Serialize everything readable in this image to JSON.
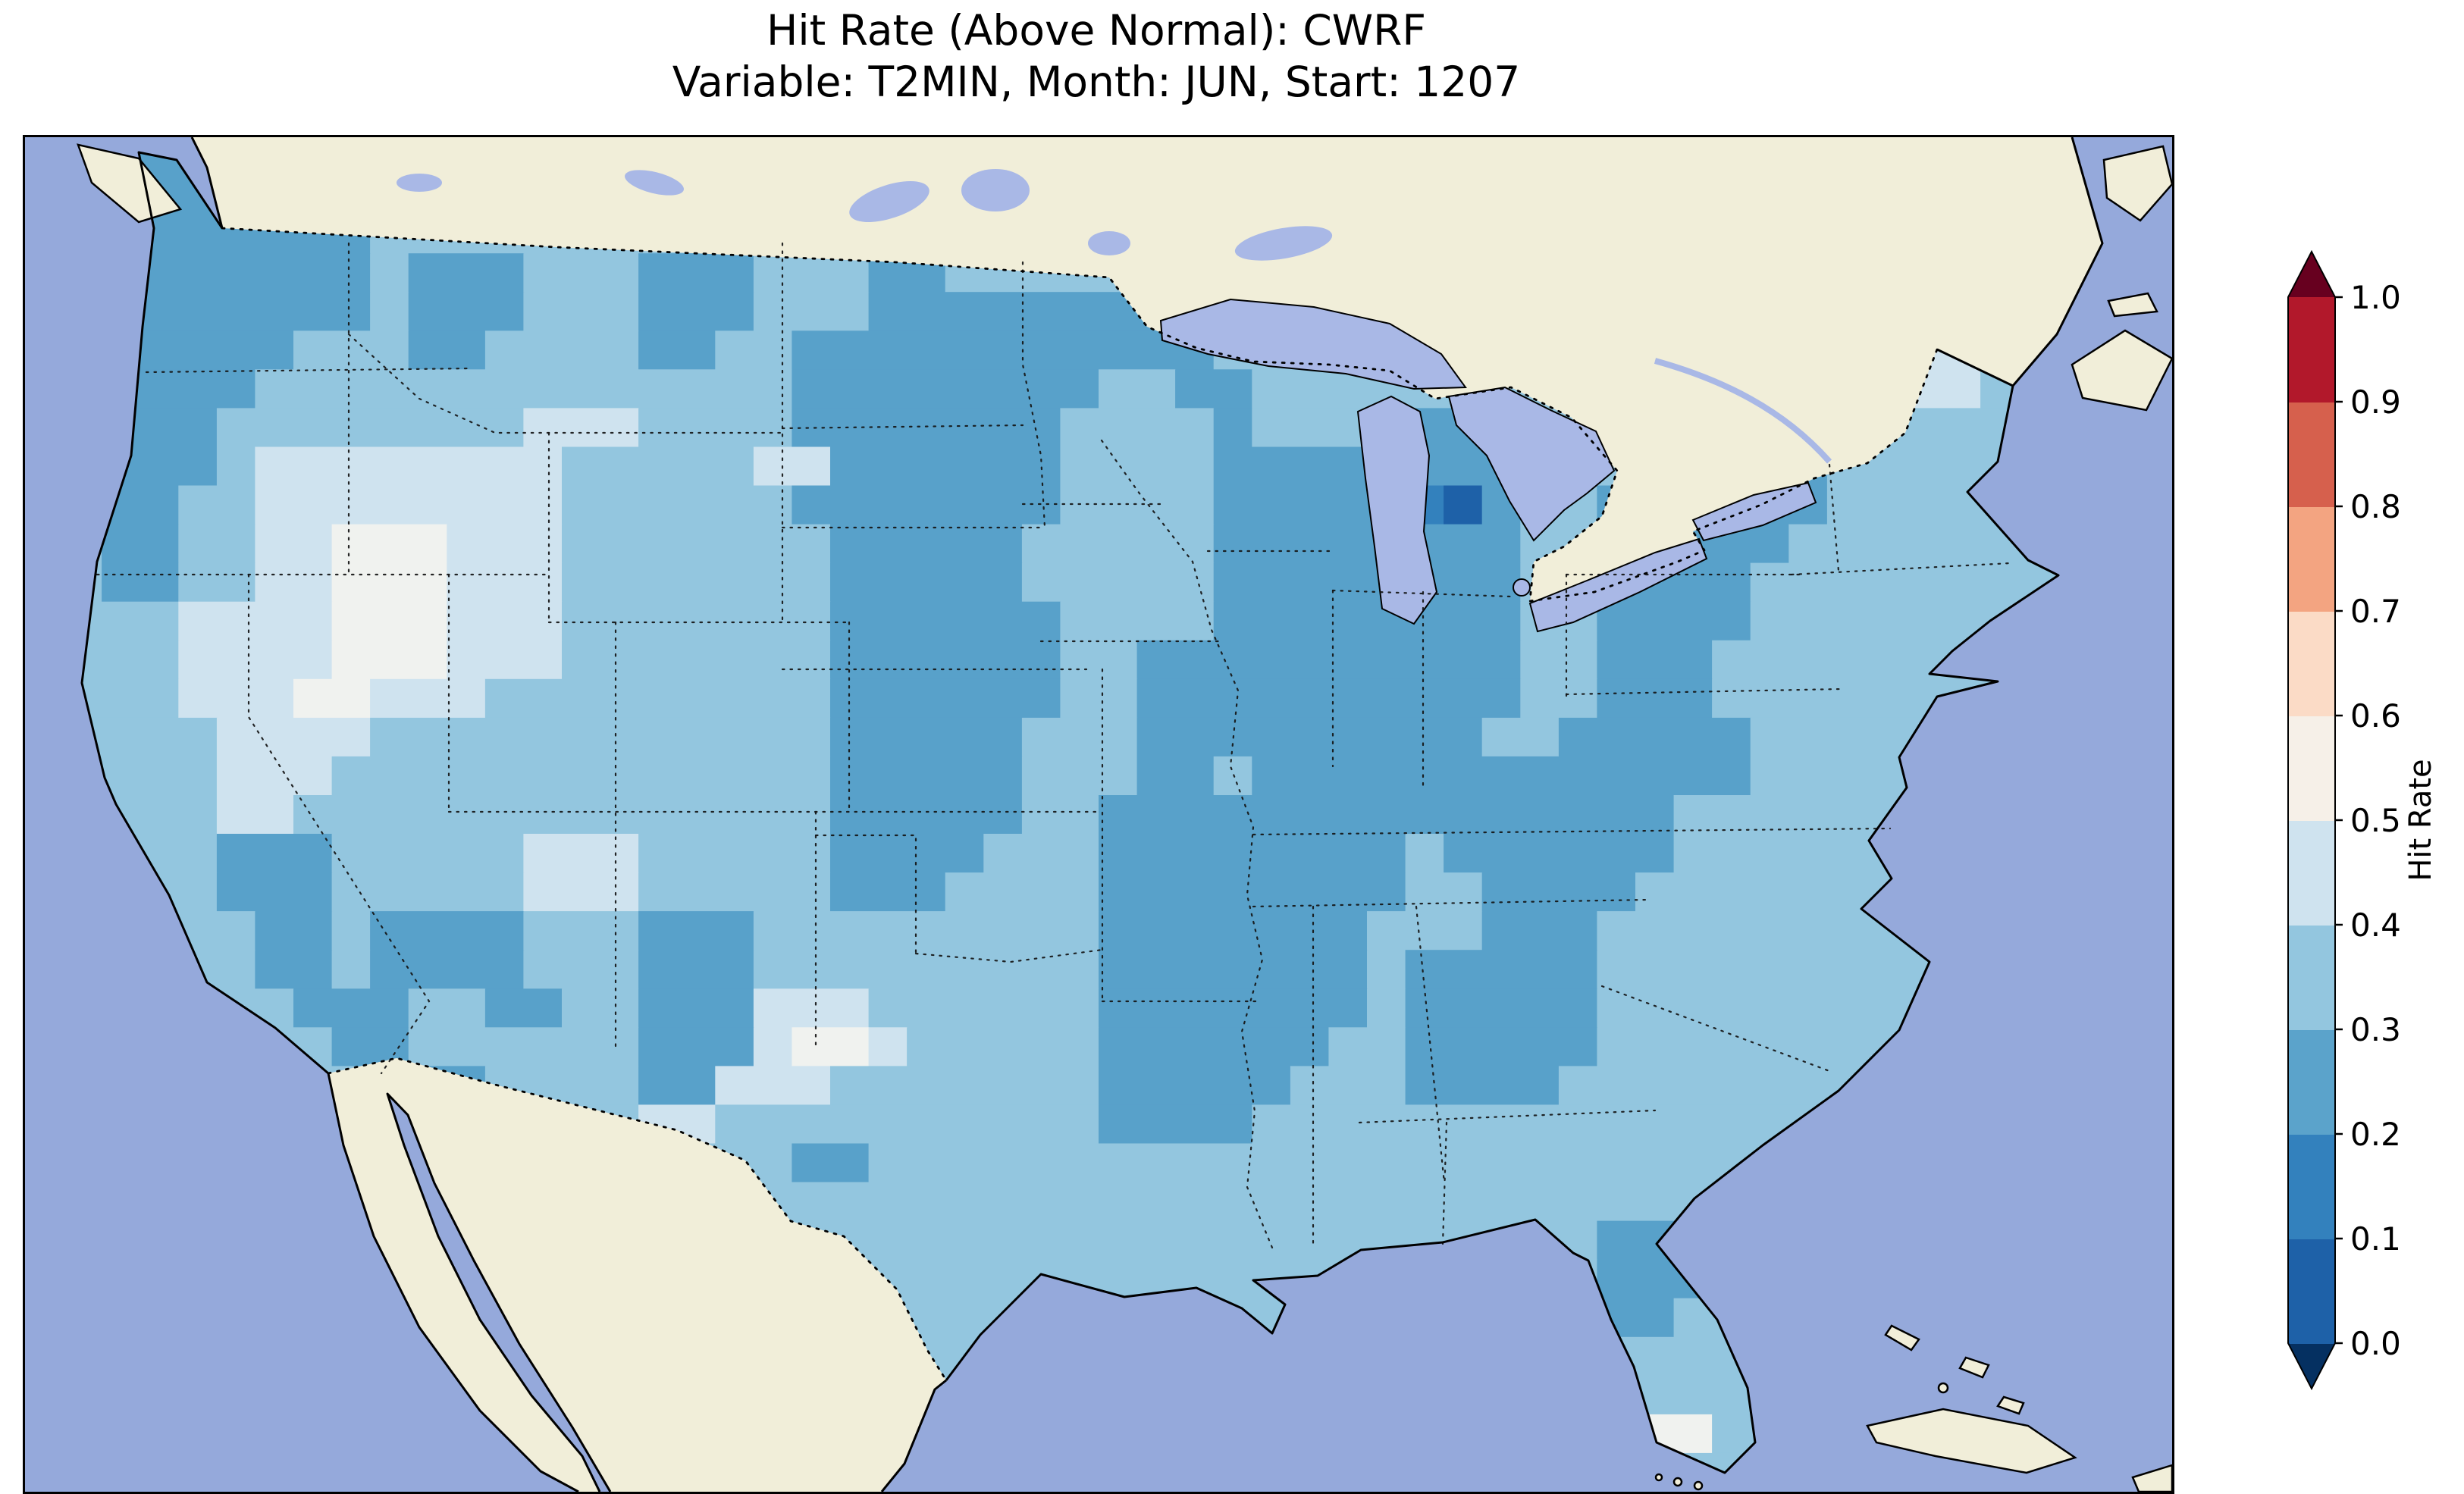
{
  "title": {
    "line1": "Hit Rate (Above Normal): CWRF",
    "line2": "Variable: T2MIN, Month: JUN, Start: 1207"
  },
  "colors": {
    "ocean": "#95a9db",
    "land": "#f1eed9",
    "lakes": "#a9b8e6",
    "figure_background": "#ffffff",
    "coastline": "#000000"
  },
  "colorbar": {
    "label": "Hit Rate",
    "ticks": [
      "1.0",
      "0.9",
      "0.8",
      "0.7",
      "0.6",
      "0.5",
      "0.4",
      "0.3",
      "0.2",
      "0.1",
      "0.0"
    ],
    "segments_bottom_to_top": [
      "#1e61a8",
      "#3381bd",
      "#5ba3cb",
      "#93c6df",
      "#cfe3ef",
      "#f6f0e8",
      "#fbdbc6",
      "#f3a481",
      "#d6604d",
      "#b2182b"
    ],
    "under_color": "#053061",
    "over_color": "#67001f"
  },
  "chart_data": {
    "type": "heatmap",
    "title": "Hit Rate (Above Normal): CWRF",
    "subtitle": "Variable: T2MIN, Month: JUN, Start: 1207",
    "metric": "Hit Rate (Above Normal)",
    "model": "CWRF",
    "variable": "T2MIN",
    "month": "JUN",
    "start": "1207",
    "region": "Contiguous United States",
    "colorbar_label": "Hit Rate",
    "colorbar_ticks": [
      0.0,
      0.1,
      0.2,
      0.3,
      0.4,
      0.5,
      0.6,
      0.7,
      0.8,
      0.9,
      1.0
    ],
    "colormap": "RdBu, discrete 0.1 bins, extended both ends",
    "value_bins": {
      "1": "0.0-0.1",
      "2": "0.1-0.2",
      "3": "0.2-0.3",
      "4": "0.3-0.4",
      "5": "0.4-0.5",
      "6": "0.5-0.6"
    },
    "bin_colors": {
      "1": "#1e61a8",
      "2": "#3381bd",
      "3": "#58a1ca",
      "4": "#93c6df",
      "5": "#cfe3ef",
      "6": "#f0f2ef"
    },
    "notes": "Hit rates over CONUS are mostly 0.2-0.4 (blues); darker 0.2-0.3 over Pacific Northwest, northern plains, Midwest/Ohio Valley, Appalachians, Ozarks and central Gulf states; lighter 0.4-0.6 over the Great Basin, west Texas and northern Maine; a single 0.0-0.1 cell near the Lake Huron shore of Michigan.",
    "grid": {
      "cols": 56,
      "rows": 35,
      "encoding": "run-length 'binCode:count' per row, west to east, north to south; clipped to US outline",
      "rows_rle": [
        "4:3,3:6,4:47",
        "4:3,3:6,4:47",
        "4:2,3:7,4:47",
        "4:2,3:7,4:1,3:3,4:3,3:3,4:3,3:2,4:32",
        "4:2,3:7,4:1,3:3,4:3,3:3,4:3,3:8,4:19,5:3,4:4",
        "4:2,3:5,4:3,3:2,4:4,3:2,4:2,3:11,4:18,5:3,4:4",
        "4:2,3:4,4:14,3:8,4:2,3:2,4:17,5:2,4:5",
        "4:2,3:3,4:8,5:3,4:4,3:7,4:4,3:1,4:3,3:4,4:17",
        "4:2,3:3,4:1,5:8,4:5,5:2,3:6,4:4,3:8,4:3,3:5,4:9",
        "4:2,3:2,4:2,5:8,4:6,3:7,4:4,3:5,2:1,1:1,3:1,4:2,3:6,4:9",
        "4:2,3:2,4:2,5:2,6:3,5:3,4:7,3:5,4:5,3:8,4:2,3:5,4:10",
        "4:2,3:2,4:2,5:2,6:3,5:3,4:7,3:5,4:5,3:8,4:2,3:4,4:11",
        "4:4,5:4,6:3,5:3,4:7,3:6,4:4,3:8,4:2,3:4,4:11",
        "4:4,5:4,6:3,5:3,4:7,3:6,4:2,3:10,4:2,3:3,4:12",
        "4:4,5:3,6:2,5:3,4:9,3:6,4:2,3:10,4:2,3:3,4:12",
        "4:5,5:4,4:12,3:5,4:3,3:9,4:2,3:5,4:11",
        "4:5,5:3,4:13,3:5,4:3,3:2,4:1,3:13,4:11",
        "4:5,5:2,4:14,3:5,4:2,3:15,4:13",
        "4:5,3:3,4:5,5:3,4:5,3:4,4:3,3:8,4:1,3:6,4:13",
        "4:5,3:3,4:5,5:3,4:5,3:3,4:4,3:8,4:2,3:4,4:14",
        "4:6,3:2,4:1,3:4,4:3,3:3,4:9,3:7,4:3,3:3,4:15",
        "4:6,3:2,4:1,3:4,4:3,3:3,4:9,3:7,4:1,3:5,4:15",
        "4:7,3:3,4:2,3:2,4:2,3:3,5:3,4:6,3:7,4:1,3:5,4:15",
        "4:8,3:2,4:6,3:3,5:1,6:2,5:1,4:5,3:6,4:2,3:5,4:15",
        "4:10,3:2,4:4,3:2,5:3,4:7,3:5,4:3,3:4,4:16",
        "4:16,5:2,4:10,3:4,4:24",
        "4:20,3:2,4:34",
        "4:56",
        "4:41,3:3,4:12",
        "4:41,3:3,4:12",
        "4:41,3:2,4:13",
        "4:56",
        "4:56",
        "4:42,6:2,4:12",
        "4:56"
      ]
    }
  }
}
